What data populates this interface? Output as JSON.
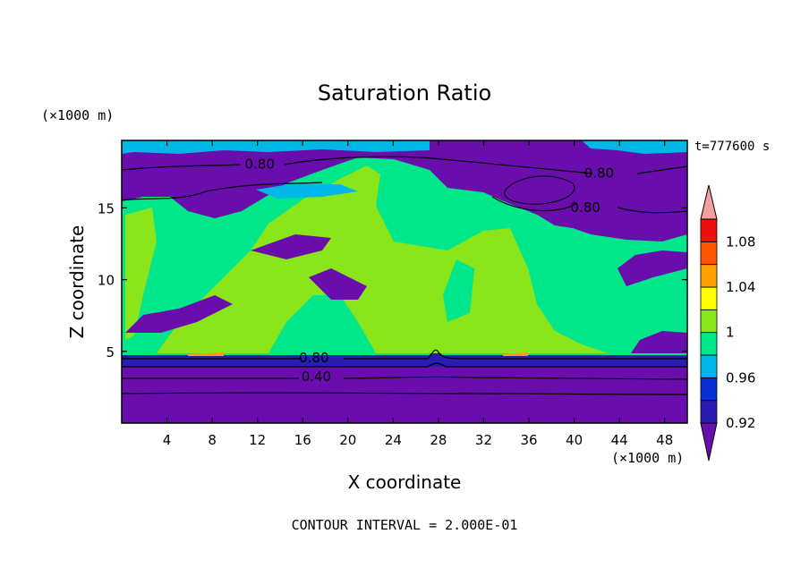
{
  "chart_data": {
    "type": "heatmap",
    "title": "Saturation Ratio",
    "xlabel": "X coordinate",
    "ylabel": "Z coordinate",
    "x_unit": "(×1000 m)",
    "y_unit": "(×1000 m)",
    "time_label": "t=777600 s",
    "footer": "CONTOUR INTERVAL = 2.000E-01",
    "xlim": [
      0,
      50
    ],
    "ylim": [
      0,
      19.7
    ],
    "x_ticks": [
      4,
      8,
      12,
      16,
      20,
      24,
      28,
      32,
      36,
      40,
      44,
      48
    ],
    "y_ticks": [
      5,
      10,
      15
    ],
    "colorbar": {
      "levels": [
        0.92,
        0.94,
        0.96,
        0.98,
        1.0,
        1.02,
        1.04,
        1.06,
        1.08,
        1.1
      ],
      "labels": [
        "0.92",
        "0.96",
        "1",
        "1.04",
        "1.08"
      ],
      "label_levels": [
        0.92,
        0.96,
        1.0,
        1.04,
        1.08
      ],
      "colors": [
        "#6a0dad",
        "#2b1bb0",
        "#0a2fd6",
        "#00b7e8",
        "#00e68a",
        "#8ae51a",
        "#ffff00",
        "#ffa000",
        "#ff5500",
        "#ee1010",
        "#f4a0a0"
      ]
    },
    "contour_labels": [
      {
        "text": "0.80",
        "x": 12.2,
        "z": 18.1
      },
      {
        "text": "0.80",
        "x": 42.2,
        "z": 17.5
      },
      {
        "text": "0.80",
        "x": 41.0,
        "z": 15.1
      },
      {
        "text": "0.80",
        "x": 17.0,
        "z": 4.6
      },
      {
        "text": "0.40",
        "x": 17.2,
        "z": 3.3
      }
    ]
  }
}
